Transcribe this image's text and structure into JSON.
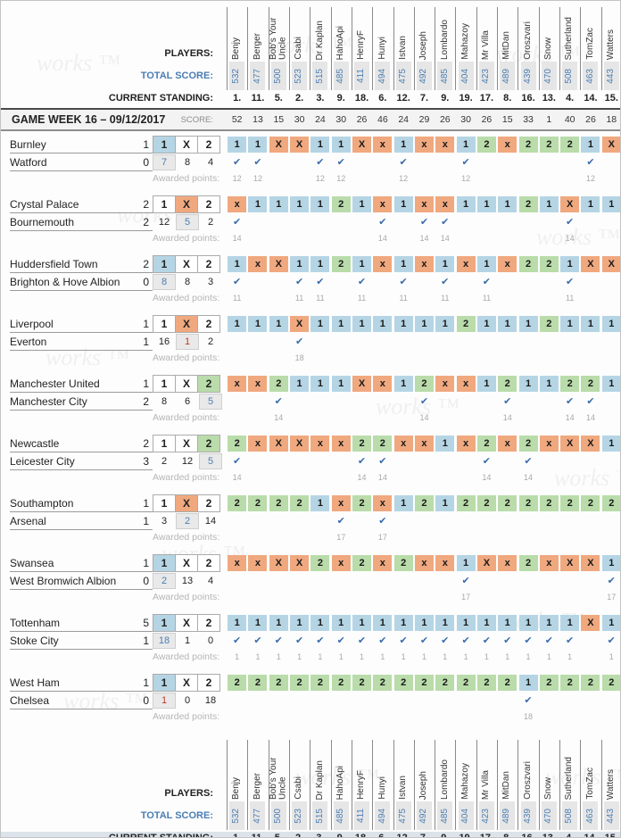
{
  "labels": {
    "players": "PLAYERS:",
    "total_score": "TOTAL SCORE:",
    "current_standing": "CURRENT STANDING:",
    "score": "SCORE:",
    "awarded_points": "Awarded points:",
    "week_title": "GAME WEEK 16 – 09/12/2017"
  },
  "icons": {
    "check": "✔"
  },
  "watermark": {
    "text": "works ™"
  },
  "colors": {
    "home_win_cell": "#b5d5e5",
    "draw_cell": "#f0a87f",
    "away_win_cell": "#b9dcaa",
    "check_blue": "#3a6cad",
    "score_blue": "#4a7db3",
    "count_red": "#c0392b",
    "highlight_grey": "#e9e9e9",
    "points_grey": "#a9a9a9"
  },
  "options": [
    "1",
    "X",
    "2"
  ],
  "players": [
    {
      "name": "Benjy",
      "total": "532",
      "standing": "1.",
      "week_score": "52"
    },
    {
      "name": "Berger",
      "total": "477",
      "standing": "11.",
      "week_score": "13"
    },
    {
      "name": "Bob's Your Uncle",
      "total": "500",
      "standing": "5.",
      "week_score": "15"
    },
    {
      "name": "Csabi",
      "total": "523",
      "standing": "2.",
      "week_score": "30"
    },
    {
      "name": "Dr Kaplan",
      "total": "515",
      "standing": "3.",
      "week_score": "24"
    },
    {
      "name": "HahoApi",
      "total": "485",
      "standing": "9.",
      "week_score": "30"
    },
    {
      "name": "HenryF",
      "total": "411",
      "standing": "18.",
      "week_score": "26"
    },
    {
      "name": "Hunyi",
      "total": "494",
      "standing": "6.",
      "week_score": "46"
    },
    {
      "name": "Istvan",
      "total": "475",
      "standing": "12.",
      "week_score": "24"
    },
    {
      "name": "Joseph",
      "total": "492",
      "standing": "7.",
      "week_score": "29"
    },
    {
      "name": "Lombardo",
      "total": "485",
      "standing": "9.",
      "week_score": "26"
    },
    {
      "name": "Mahazoy",
      "total": "404",
      "standing": "19.",
      "week_score": "30"
    },
    {
      "name": "Mr Villa",
      "total": "423",
      "standing": "17.",
      "week_score": "26"
    },
    {
      "name": "MitDan",
      "total": "489",
      "standing": "8.",
      "week_score": "15"
    },
    {
      "name": "Oroszvari",
      "total": "439",
      "standing": "16.",
      "week_score": "33"
    },
    {
      "name": "Snow",
      "total": "470",
      "standing": "13.",
      "week_score": "1"
    },
    {
      "name": "Sutherland",
      "total": "508",
      "standing": "4.",
      "week_score": "40"
    },
    {
      "name": "TomZac",
      "total": "463",
      "standing": "14.",
      "week_score": "26"
    },
    {
      "name": "Watters",
      "total": "443",
      "standing": "15.",
      "week_score": "18"
    }
  ],
  "matches": [
    {
      "home": "Burnley",
      "away": "Watford",
      "home_score": "1",
      "away_score": "0",
      "outcome": "1",
      "counts": [
        "7",
        "8",
        "4"
      ],
      "count_highlight": 0,
      "count_color": "blue",
      "predictions": [
        "1",
        "1",
        "X",
        "X",
        "1",
        "1",
        "X",
        "x",
        "1",
        "x",
        "x",
        "1",
        "2",
        "x",
        "2",
        "2",
        "2",
        "1",
        "X"
      ],
      "points": [
        "12",
        "12",
        null,
        null,
        "12",
        "12",
        null,
        null,
        "12",
        null,
        null,
        "12",
        null,
        null,
        null,
        null,
        null,
        "12",
        null
      ]
    },
    {
      "home": "Crystal Palace",
      "away": "Bournemouth",
      "home_score": "2",
      "away_score": "2",
      "outcome": "X",
      "counts": [
        "12",
        "5",
        "2"
      ],
      "count_highlight": 1,
      "count_color": "blue",
      "predictions": [
        "x",
        "1",
        "1",
        "1",
        "1",
        "2",
        "1",
        "x",
        "1",
        "x",
        "x",
        "1",
        "1",
        "1",
        "2",
        "1",
        "X",
        "1",
        "1"
      ],
      "points": [
        "14",
        null,
        null,
        null,
        null,
        null,
        null,
        "14",
        null,
        "14",
        "14",
        null,
        null,
        null,
        null,
        null,
        "14",
        null,
        null
      ]
    },
    {
      "home": "Huddersfield Town",
      "away": "Brighton & Hove Albion",
      "home_score": "2",
      "away_score": "0",
      "outcome": "1",
      "counts": [
        "8",
        "8",
        "3"
      ],
      "count_highlight": 0,
      "count_color": "blue",
      "predictions": [
        "1",
        "x",
        "X",
        "1",
        "1",
        "2",
        "1",
        "x",
        "1",
        "x",
        "1",
        "x",
        "1",
        "x",
        "2",
        "2",
        "1",
        "X",
        "X"
      ],
      "points": [
        "11",
        null,
        null,
        "11",
        "11",
        null,
        "11",
        null,
        "11",
        null,
        "11",
        null,
        "11",
        null,
        null,
        null,
        "11",
        null,
        null
      ]
    },
    {
      "home": "Liverpool",
      "away": "Everton",
      "home_score": "1",
      "away_score": "1",
      "outcome": "X",
      "counts": [
        "16",
        "1",
        "2"
      ],
      "count_highlight": 1,
      "count_color": "red",
      "predictions": [
        "1",
        "1",
        "1",
        "X",
        "1",
        "1",
        "1",
        "1",
        "1",
        "1",
        "1",
        "2",
        "1",
        "1",
        "1",
        "2",
        "1",
        "1",
        "1"
      ],
      "points": [
        null,
        null,
        null,
        "18",
        null,
        null,
        null,
        null,
        null,
        null,
        null,
        null,
        null,
        null,
        null,
        null,
        null,
        null,
        null
      ]
    },
    {
      "home": "Manchester United",
      "away": "Manchester City",
      "home_score": "1",
      "away_score": "2",
      "outcome": "2",
      "counts": [
        "8",
        "6",
        "5"
      ],
      "count_highlight": 2,
      "count_color": "blue",
      "predictions": [
        "x",
        "x",
        "2",
        "1",
        "1",
        "1",
        "X",
        "x",
        "1",
        "2",
        "x",
        "x",
        "1",
        "2",
        "1",
        "1",
        "2",
        "2",
        "1"
      ],
      "points": [
        null,
        null,
        "14",
        null,
        null,
        null,
        null,
        null,
        null,
        "14",
        null,
        null,
        null,
        "14",
        null,
        null,
        "14",
        "14",
        null
      ]
    },
    {
      "home": "Newcastle",
      "away": "Leicester City",
      "home_score": "2",
      "away_score": "3",
      "outcome": "2",
      "counts": [
        "2",
        "12",
        "5"
      ],
      "count_highlight": 2,
      "count_color": "blue",
      "predictions": [
        "2",
        "x",
        "X",
        "X",
        "x",
        "x",
        "2",
        "2",
        "x",
        "x",
        "1",
        "x",
        "2",
        "x",
        "2",
        "x",
        "X",
        "X",
        "1"
      ],
      "points": [
        "14",
        null,
        null,
        null,
        null,
        null,
        "14",
        "14",
        null,
        null,
        null,
        null,
        "14",
        null,
        "14",
        null,
        null,
        null,
        null
      ]
    },
    {
      "home": "Southampton",
      "away": "Arsenal",
      "home_score": "1",
      "away_score": "1",
      "outcome": "X",
      "counts": [
        "3",
        "2",
        "14"
      ],
      "count_highlight": 1,
      "count_color": "blue",
      "predictions": [
        "2",
        "2",
        "2",
        "2",
        "1",
        "x",
        "2",
        "x",
        "1",
        "2",
        "1",
        "2",
        "2",
        "2",
        "2",
        "2",
        "2",
        "2",
        "2"
      ],
      "points": [
        null,
        null,
        null,
        null,
        null,
        "17",
        null,
        "17",
        null,
        null,
        null,
        null,
        null,
        null,
        null,
        null,
        null,
        null,
        null
      ]
    },
    {
      "home": "Swansea",
      "away": "West Bromwich Albion",
      "home_score": "1",
      "away_score": "0",
      "outcome": "1",
      "counts": [
        "2",
        "13",
        "4"
      ],
      "count_highlight": 0,
      "count_color": "blue",
      "predictions": [
        "x",
        "x",
        "X",
        "X",
        "2",
        "x",
        "2",
        "x",
        "2",
        "x",
        "x",
        "1",
        "X",
        "x",
        "2",
        "x",
        "X",
        "X",
        "1"
      ],
      "points": [
        null,
        null,
        null,
        null,
        null,
        null,
        null,
        null,
        null,
        null,
        null,
        "17",
        null,
        null,
        null,
        null,
        null,
        null,
        "17"
      ]
    },
    {
      "home": "Tottenham",
      "away": "Stoke City",
      "home_score": "5",
      "away_score": "1",
      "outcome": "1",
      "counts": [
        "18",
        "1",
        "0"
      ],
      "count_highlight": 0,
      "count_color": "blue",
      "predictions": [
        "1",
        "1",
        "1",
        "1",
        "1",
        "1",
        "1",
        "1",
        "1",
        "1",
        "1",
        "1",
        "1",
        "1",
        "1",
        "1",
        "1",
        "X",
        "1"
      ],
      "points": [
        "1",
        "1",
        "1",
        "1",
        "1",
        "1",
        "1",
        "1",
        "1",
        "1",
        "1",
        "1",
        "1",
        "1",
        "1",
        "1",
        "1",
        null,
        "1"
      ]
    },
    {
      "home": "West Ham",
      "away": "Chelsea",
      "home_score": "1",
      "away_score": "0",
      "outcome": "1",
      "counts": [
        "1",
        "0",
        "18"
      ],
      "count_highlight": 0,
      "count_color": "red",
      "predictions": [
        "2",
        "2",
        "2",
        "2",
        "2",
        "2",
        "2",
        "2",
        "2",
        "2",
        "2",
        "2",
        "2",
        "2",
        "1",
        "2",
        "2",
        "2",
        "2"
      ],
      "points": [
        null,
        null,
        null,
        null,
        null,
        null,
        null,
        null,
        null,
        null,
        null,
        null,
        null,
        null,
        "18",
        null,
        null,
        null,
        null
      ]
    }
  ]
}
